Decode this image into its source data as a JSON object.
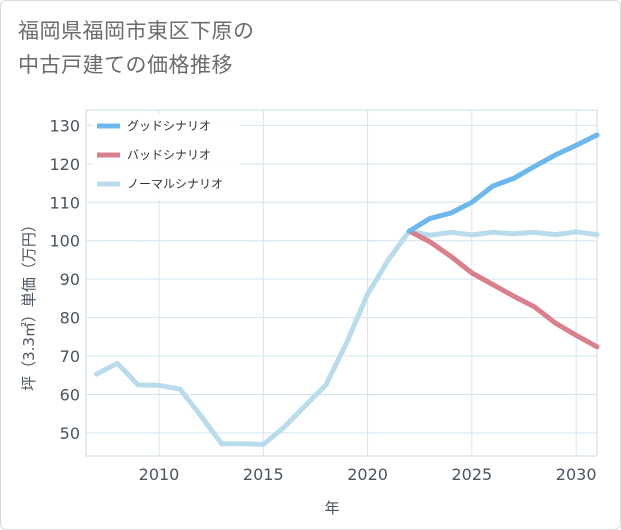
{
  "chart_data": {
    "type": "line",
    "title": "福岡県福岡市東区下原の\n中古戸建ての価格推移",
    "xlabel": "年",
    "ylabel": "坪（3.3㎡）単価（万円）",
    "xlim": [
      2006.5,
      2031
    ],
    "ylim": [
      44,
      134
    ],
    "x_ticks": [
      2010,
      2015,
      2020,
      2025,
      2030
    ],
    "y_ticks": [
      50,
      60,
      70,
      80,
      90,
      100,
      110,
      120,
      130
    ],
    "grid": true,
    "legend_position": "top-left",
    "series": [
      {
        "name": "グッドシナリオ",
        "color": "#6cb8ec",
        "x": [
          2022,
          2023,
          2024,
          2025,
          2026,
          2027,
          2028,
          2029,
          2030,
          2031
        ],
        "y": [
          102.5,
          105.8,
          107.2,
          110.0,
          114.2,
          116.2,
          119.3,
          122.3,
          124.8,
          127.5
        ]
      },
      {
        "name": "バッドシナリオ",
        "color": "#d9808c",
        "x": [
          2022,
          2023,
          2024,
          2025,
          2026,
          2027,
          2028,
          2029,
          2030,
          2031
        ],
        "y": [
          102.5,
          99.7,
          95.9,
          91.6,
          88.6,
          85.6,
          82.8,
          78.6,
          75.4,
          72.4
        ]
      },
      {
        "name": "ノーマルシナリオ",
        "color": "#b9dcec",
        "x": [
          2007,
          2008,
          2009,
          2010,
          2011,
          2012,
          2013,
          2014,
          2015,
          2016,
          2017,
          2018,
          2019,
          2020,
          2021,
          2022,
          2023,
          2024,
          2025,
          2026,
          2027,
          2028,
          2029,
          2030,
          2031
        ],
        "y": [
          65.3,
          68.1,
          62.5,
          62.4,
          61.4,
          54.5,
          47.2,
          47.2,
          47.0,
          51.5,
          57.0,
          62.5,
          73.5,
          86.1,
          95.0,
          102.5,
          101.4,
          102.2,
          101.5,
          102.2,
          101.8,
          102.2,
          101.6,
          102.3,
          101.6
        ]
      }
    ]
  }
}
